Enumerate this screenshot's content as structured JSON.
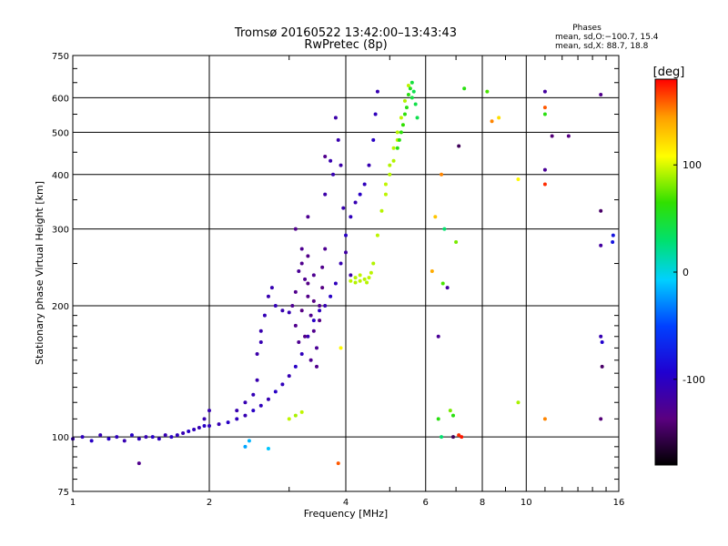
{
  "chart_data": {
    "type": "scatter",
    "title": "Tromsø 20160522 13:42:00–13:43:43",
    "subtitle": "RwPretec (8p)",
    "xlabel": "Frequency [MHz]",
    "ylabel": "Stationary phase Virtual Height [km]",
    "xscale": "log",
    "yscale": "log",
    "xlim": [
      1,
      16
    ],
    "ylim": [
      75,
      750
    ],
    "x_ticks": [
      1,
      2,
      4,
      6,
      8,
      10,
      16
    ],
    "y_ticks": [
      75,
      100,
      200,
      300,
      400,
      500,
      600,
      750
    ],
    "grid": true,
    "stats": {
      "heading": "Phases",
      "line1": "mean, sd,O:−100.7, 15.4",
      "line2": "mean, sd,X:  88.7, 18.8"
    },
    "colorbar": {
      "label": "[deg]",
      "range": [
        -180,
        180
      ],
      "ticks": [
        100,
        0,
        -100
      ],
      "colormap": "rainbow (black → purple → blue → cyan → green → yellow → red)"
    },
    "series": [
      {
        "points": [
          [
            1.0,
            99,
            -110
          ],
          [
            1.05,
            100,
            -105
          ],
          [
            1.1,
            98,
            -100
          ],
          [
            1.15,
            101,
            -110
          ],
          [
            1.2,
            99,
            -100
          ],
          [
            1.25,
            100,
            -105
          ],
          [
            1.3,
            98,
            -110
          ],
          [
            1.35,
            101,
            -100
          ],
          [
            1.4,
            99,
            -105
          ],
          [
            1.45,
            100,
            -110
          ],
          [
            1.5,
            100,
            -100
          ],
          [
            1.55,
            99,
            -105
          ],
          [
            1.6,
            101,
            -110
          ],
          [
            1.65,
            100,
            -100
          ],
          [
            1.7,
            101,
            -105
          ],
          [
            1.75,
            102,
            -110
          ],
          [
            1.8,
            103,
            -100
          ],
          [
            1.85,
            104,
            -105
          ],
          [
            1.9,
            105,
            -110
          ],
          [
            1.95,
            106,
            -100
          ],
          [
            2.0,
            106,
            -105
          ],
          [
            2.1,
            107,
            -110
          ],
          [
            2.2,
            108,
            -100
          ],
          [
            2.3,
            110,
            -105
          ],
          [
            2.4,
            112,
            -110
          ],
          [
            2.5,
            115,
            -100
          ],
          [
            2.6,
            118,
            -105
          ],
          [
            2.7,
            122,
            -110
          ],
          [
            2.8,
            127,
            -100
          ],
          [
            2.9,
            132,
            -105
          ],
          [
            3.0,
            138,
            -110
          ],
          [
            3.1,
            145,
            -100
          ],
          [
            3.2,
            155,
            -105
          ],
          [
            3.3,
            170,
            -110
          ],
          [
            3.4,
            185,
            -100
          ],
          [
            3.5,
            195,
            -105
          ],
          [
            3.6,
            200,
            -110
          ],
          [
            3.7,
            210,
            -100
          ],
          [
            3.8,
            225,
            -105
          ],
          [
            3.9,
            250,
            -110
          ],
          [
            4.0,
            290,
            -100
          ],
          [
            4.1,
            320,
            -105
          ],
          [
            4.2,
            345,
            -110
          ],
          [
            4.3,
            360,
            -100
          ],
          [
            4.4,
            380,
            -105
          ],
          [
            4.5,
            420,
            -110
          ],
          [
            4.6,
            480,
            -100
          ],
          [
            4.65,
            550,
            -105
          ],
          [
            4.7,
            620,
            -110
          ],
          [
            4.1,
            235,
            -115
          ],
          [
            4.0,
            265,
            -118
          ],
          [
            3.95,
            335,
            -112
          ],
          [
            3.9,
            420,
            -115
          ],
          [
            3.85,
            480,
            -112
          ],
          [
            3.8,
            540,
            -115
          ],
          [
            3.75,
            400,
            -110
          ],
          [
            3.7,
            430,
            -112
          ],
          [
            3.6,
            360,
            -115
          ],
          [
            2.3,
            115,
            -112
          ],
          [
            2.4,
            120,
            -110
          ],
          [
            2.5,
            125,
            -108
          ],
          [
            2.55,
            135,
            -112
          ],
          [
            2.6,
            165,
            -110
          ],
          [
            2.65,
            190,
            -108
          ],
          [
            2.7,
            210,
            -112
          ],
          [
            2.75,
            220,
            -110
          ],
          [
            2.8,
            200,
            -108
          ],
          [
            2.9,
            195,
            -112
          ],
          [
            3.0,
            193,
            -110
          ],
          [
            2.55,
            155,
            -115
          ],
          [
            2.6,
            175,
            -112
          ],
          [
            1.95,
            110,
            -112
          ],
          [
            2.0,
            115,
            -110
          ],
          [
            3.05,
            200,
            -128
          ],
          [
            3.1,
            215,
            -130
          ],
          [
            3.15,
            240,
            -125
          ],
          [
            3.2,
            250,
            -130
          ],
          [
            3.25,
            230,
            -128
          ],
          [
            3.3,
            210,
            -132
          ],
          [
            3.35,
            190,
            -128
          ],
          [
            3.4,
            175,
            -130
          ],
          [
            3.45,
            160,
            -125
          ],
          [
            3.5,
            200,
            -130
          ],
          [
            3.2,
            270,
            -128
          ],
          [
            3.3,
            260,
            -132
          ],
          [
            3.4,
            235,
            -128
          ],
          [
            3.55,
            245,
            -130
          ],
          [
            3.6,
            270,
            -128
          ],
          [
            3.1,
            180,
            -130
          ],
          [
            3.15,
            165,
            -128
          ],
          [
            3.25,
            170,
            -132
          ],
          [
            3.35,
            150,
            -128
          ],
          [
            3.45,
            145,
            -130
          ],
          [
            3.2,
            195,
            -135
          ],
          [
            3.3,
            225,
            -133
          ],
          [
            3.4,
            205,
            -135
          ],
          [
            3.5,
            185,
            -133
          ],
          [
            3.55,
            220,
            -135
          ],
          [
            3.3,
            320,
            -128
          ],
          [
            3.6,
            440,
            -130
          ],
          [
            4.1,
            228,
            95
          ],
          [
            4.2,
            226,
            92
          ],
          [
            4.3,
            228,
            94
          ],
          [
            4.4,
            230,
            93
          ],
          [
            4.5,
            232,
            95
          ],
          [
            4.6,
            250,
            92
          ],
          [
            4.7,
            290,
            94
          ],
          [
            4.8,
            330,
            93
          ],
          [
            4.9,
            380,
            95
          ],
          [
            5.0,
            420,
            92
          ],
          [
            5.1,
            460,
            94
          ],
          [
            5.2,
            500,
            93
          ],
          [
            5.3,
            540,
            95
          ],
          [
            5.4,
            590,
            92
          ],
          [
            5.5,
            640,
            94
          ],
          [
            5.0,
            400,
            93
          ],
          [
            5.1,
            430,
            92
          ],
          [
            5.2,
            480,
            95
          ],
          [
            4.9,
            360,
            94
          ],
          [
            4.2,
            232,
            92
          ],
          [
            4.3,
            235,
            95
          ],
          [
            4.45,
            226,
            93
          ],
          [
            4.55,
            238,
            94
          ],
          [
            5.6,
            650,
            45
          ],
          [
            5.65,
            620,
            40
          ],
          [
            5.7,
            580,
            42
          ],
          [
            5.75,
            540,
            40
          ],
          [
            5.6,
            600,
            44
          ],
          [
            5.55,
            630,
            55
          ],
          [
            5.5,
            610,
            60
          ],
          [
            5.45,
            570,
            58
          ],
          [
            5.4,
            550,
            62
          ],
          [
            5.35,
            520,
            65
          ],
          [
            5.3,
            500,
            62
          ],
          [
            5.25,
            480,
            60
          ],
          [
            5.2,
            460,
            58
          ],
          [
            6.3,
            320,
            130
          ],
          [
            6.2,
            240,
            140
          ],
          [
            6.5,
            400,
            150
          ],
          [
            6.6,
            300,
            30
          ],
          [
            6.7,
            220,
            -120
          ],
          [
            6.55,
            225,
            70
          ],
          [
            6.4,
            170,
            -125
          ],
          [
            7.0,
            280,
            80
          ],
          [
            7.1,
            465,
            -150
          ],
          [
            7.3,
            630,
            60
          ],
          [
            8.2,
            620,
            70
          ],
          [
            8.4,
            530,
            150
          ],
          [
            8.7,
            540,
            120
          ],
          [
            9.6,
            390,
            110
          ],
          [
            9.6,
            120,
            90
          ],
          [
            11.0,
            620,
            -120
          ],
          [
            11.0,
            570,
            160
          ],
          [
            11.0,
            550,
            60
          ],
          [
            11.0,
            410,
            -125
          ],
          [
            11.0,
            380,
            170
          ],
          [
            11.0,
            110,
            150
          ],
          [
            11.4,
            490,
            -140
          ],
          [
            12.4,
            490,
            -135
          ],
          [
            14.6,
            610,
            -130
          ],
          [
            14.6,
            330,
            -145
          ],
          [
            14.6,
            275,
            -120
          ],
          [
            14.6,
            170,
            -110
          ],
          [
            14.7,
            165,
            -95
          ],
          [
            14.7,
            145,
            -145
          ],
          [
            14.6,
            110,
            -140
          ],
          [
            15.5,
            280,
            -80
          ],
          [
            15.55,
            290,
            -80
          ],
          [
            6.8,
            115,
            80
          ],
          [
            6.9,
            112,
            60
          ],
          [
            6.9,
            100,
            -150
          ],
          [
            7.1,
            101,
            170
          ],
          [
            7.2,
            100,
            175
          ],
          [
            3.0,
            110,
            95
          ],
          [
            3.1,
            112,
            90
          ],
          [
            3.2,
            114,
            95
          ],
          [
            2.4,
            95,
            -20
          ],
          [
            2.45,
            98,
            -15
          ],
          [
            2.7,
            94,
            -10
          ],
          [
            3.9,
            160,
            110
          ],
          [
            3.85,
            87,
            160
          ],
          [
            3.1,
            300,
            -130
          ],
          [
            1.4,
            87,
            -130
          ],
          [
            6.5,
            100,
            30
          ],
          [
            6.4,
            110,
            60
          ]
        ]
      }
    ]
  }
}
